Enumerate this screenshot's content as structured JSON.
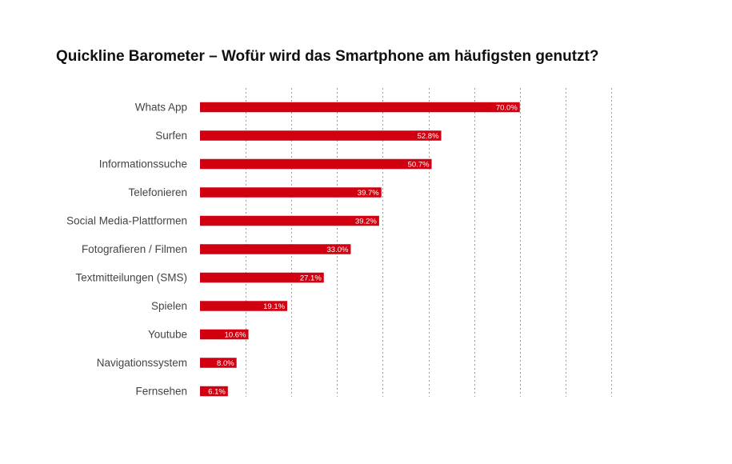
{
  "chart_data": {
    "type": "bar",
    "orientation": "horizontal",
    "title": "Quickline Barometer – Wofür wird das Smartphone am häufigsten genutzt?",
    "categories": [
      "Whats App",
      "Surfen",
      "Informationssuche",
      "Telefonieren",
      "Social Media-Plattformen",
      "Fotografieren / Filmen",
      "Textmitteilungen (SMS)",
      "Spielen",
      "Youtube",
      "Navigationssystem",
      "Fernsehen"
    ],
    "values": [
      70.0,
      52.8,
      50.7,
      39.7,
      39.2,
      33.0,
      27.1,
      19.1,
      10.6,
      8.0,
      6.1
    ],
    "value_labels": [
      "70.0%",
      "52.8%",
      "50.7%",
      "39.7%",
      "39.2%",
      "33.0%",
      "27.1%",
      "19.1%",
      "10.6%",
      "8.0%",
      "6.1%"
    ],
    "xlim": [
      0,
      90
    ],
    "grid": true,
    "legend": "none",
    "bar_color": "#d00010"
  }
}
